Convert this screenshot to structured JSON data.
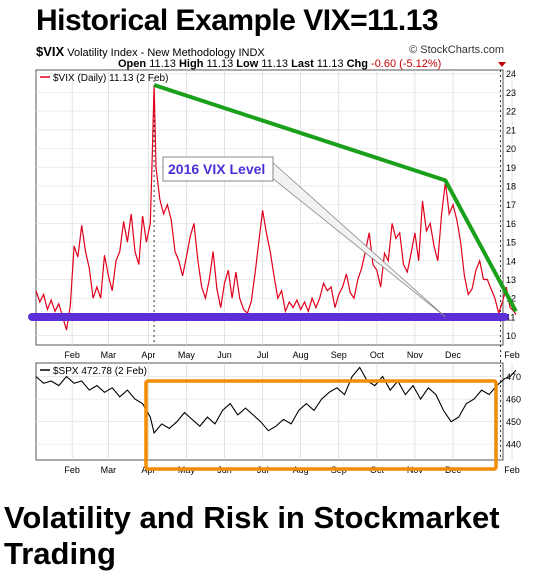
{
  "page_title": "Historical Example  VIX=11.13",
  "header": {
    "symbol": "$VIX",
    "description": "Volatility Index - New Methodology  INDX",
    "source": "© StockCharts.com",
    "open_label": "Open",
    "open": "11.13",
    "high_label": "High",
    "high": "11.13",
    "low_label": "Low",
    "low": "11.13",
    "last_label": "Last",
    "last": "11.13",
    "chg_label": "Chg",
    "chg": "-0.60 (-5.12%)"
  },
  "footer_title": "Volatility and Risk in Stockmarket Trading",
  "colors": {
    "vix_line": "#e0001b",
    "spx_line": "#000000",
    "trend_line": "#1aa01a",
    "level_line": "#5b2ed6",
    "highlight_box": "#f28c00",
    "callout_text": "#4b2fd6"
  },
  "chart_data": [
    {
      "type": "line",
      "legend": "$VIX (Daily) 11.13 (2 Feb)",
      "months": [
        "Feb",
        "Mar",
        "Apr",
        "May",
        "Jun",
        "Jul",
        "Aug",
        "Sep",
        "Oct",
        "Nov",
        "Dec",
        "Feb"
      ],
      "ylim": [
        9.5,
        24.2
      ],
      "yticks": [
        10,
        11,
        12,
        13,
        14,
        15,
        16,
        17,
        18,
        19,
        20,
        21,
        22,
        23,
        24
      ],
      "x_range": [
        0,
        12
      ],
      "series": [
        {
          "values": [
            [
              0,
              12.4
            ],
            [
              0.1,
              11.8
            ],
            [
              0.2,
              12.2
            ],
            [
              0.3,
              11.4
            ],
            [
              0.4,
              11.9
            ],
            [
              0.5,
              11.3
            ],
            [
              0.6,
              11.7
            ],
            [
              0.7,
              11.0
            ],
            [
              0.8,
              10.3
            ],
            [
              0.9,
              11.6
            ],
            [
              1.0,
              14.8
            ],
            [
              1.1,
              14.2
            ],
            [
              1.2,
              15.9
            ],
            [
              1.3,
              14.5
            ],
            [
              1.4,
              13.6
            ],
            [
              1.5,
              12.0
            ],
            [
              1.6,
              12.6
            ],
            [
              1.7,
              12.0
            ],
            [
              1.8,
              14.3
            ],
            [
              1.9,
              13.2
            ],
            [
              2.0,
              12.4
            ],
            [
              2.1,
              14.0
            ],
            [
              2.2,
              14.5
            ],
            [
              2.3,
              16.1
            ],
            [
              2.4,
              15.0
            ],
            [
              2.5,
              16.5
            ],
            [
              2.6,
              14.5
            ],
            [
              2.7,
              13.8
            ],
            [
              2.8,
              16.4
            ],
            [
              2.9,
              15.0
            ],
            [
              3.0,
              16.0
            ],
            [
              3.05,
              19.5
            ],
            [
              3.1,
              23.4
            ],
            [
              3.15,
              19.0
            ],
            [
              3.25,
              17.3
            ],
            [
              3.35,
              16.5
            ],
            [
              3.45,
              17.0
            ],
            [
              3.55,
              16.2
            ],
            [
              3.65,
              14.5
            ],
            [
              3.75,
              14.0
            ],
            [
              3.85,
              13.2
            ],
            [
              3.95,
              14.2
            ],
            [
              4.05,
              15.3
            ],
            [
              4.15,
              16.0
            ],
            [
              4.25,
              14.0
            ],
            [
              4.35,
              12.6
            ],
            [
              4.45,
              12.0
            ],
            [
              4.55,
              13.0
            ],
            [
              4.65,
              14.5
            ],
            [
              4.75,
              12.5
            ],
            [
              4.85,
              11.5
            ],
            [
              4.95,
              12.8
            ],
            [
              5.05,
              13.5
            ],
            [
              5.15,
              12.0
            ],
            [
              5.25,
              13.4
            ],
            [
              5.35,
              12.0
            ],
            [
              5.45,
              11.4
            ],
            [
              5.55,
              11.2
            ],
            [
              5.65,
              11.8
            ],
            [
              5.75,
              13.3
            ],
            [
              5.85,
              15.0
            ],
            [
              5.95,
              16.7
            ],
            [
              6.05,
              15.5
            ],
            [
              6.15,
              14.5
            ],
            [
              6.25,
              13.2
            ],
            [
              6.35,
              12.0
            ],
            [
              6.45,
              12.4
            ],
            [
              6.55,
              11.3
            ],
            [
              6.65,
              11.8
            ],
            [
              6.75,
              11.5
            ],
            [
              6.85,
              11.9
            ],
            [
              6.95,
              11.4
            ],
            [
              7.05,
              11.8
            ],
            [
              7.15,
              11.3
            ],
            [
              7.25,
              12.0
            ],
            [
              7.35,
              11.5
            ],
            [
              7.45,
              12.0
            ],
            [
              7.55,
              12.8
            ],
            [
              7.65,
              12.4
            ],
            [
              7.75,
              12.6
            ],
            [
              7.85,
              11.5
            ],
            [
              7.95,
              12.2
            ],
            [
              8.05,
              12.6
            ],
            [
              8.15,
              13.3
            ],
            [
              8.25,
              12.3
            ],
            [
              8.35,
              12.0
            ],
            [
              8.45,
              13.0
            ],
            [
              8.55,
              13.6
            ],
            [
              8.65,
              14.5
            ],
            [
              8.75,
              15.5
            ],
            [
              8.85,
              13.8
            ],
            [
              8.95,
              13.5
            ],
            [
              9.05,
              12.6
            ],
            [
              9.15,
              14.4
            ],
            [
              9.25,
              14.0
            ],
            [
              9.35,
              16.0
            ],
            [
              9.45,
              15.2
            ],
            [
              9.55,
              15.5
            ],
            [
              9.65,
              13.8
            ],
            [
              9.75,
              13.4
            ],
            [
              9.85,
              14.4
            ],
            [
              9.95,
              15.5
            ],
            [
              10.05,
              14.0
            ],
            [
              10.15,
              17.2
            ],
            [
              10.25,
              15.6
            ],
            [
              10.35,
              16.0
            ],
            [
              10.45,
              14.8
            ],
            [
              10.55,
              14.0
            ],
            [
              10.65,
              16.5
            ],
            [
              10.75,
              18.2
            ],
            [
              10.85,
              16.5
            ],
            [
              10.95,
              17.0
            ],
            [
              11.05,
              16.2
            ],
            [
              11.15,
              15.0
            ],
            [
              11.25,
              13.2
            ],
            [
              11.35,
              12.2
            ],
            [
              11.45,
              12.5
            ],
            [
              11.55,
              13.5
            ],
            [
              11.65,
              14.0
            ],
            [
              11.75,
              13.0
            ],
            [
              11.85,
              13.0
            ],
            [
              11.95,
              12.5
            ],
            [
              12.05,
              12.0
            ],
            [
              12.15,
              11.2
            ],
            [
              12.25,
              11.8
            ],
            [
              12.35,
              12.6
            ],
            [
              12.45,
              11.5
            ],
            [
              12.55,
              11.3
            ],
            [
              12.6,
              11.13
            ]
          ]
        }
      ],
      "annotations": {
        "trend_points": [
          [
            3.1,
            23.4
          ],
          [
            10.75,
            18.3
          ],
          [
            12.6,
            11.3
          ]
        ],
        "level": 11.0,
        "callout_label": "2016 VIX Level",
        "callout_target": [
          10.75,
          11.0
        ]
      }
    },
    {
      "type": "line",
      "legend": "$SPX 472.78 (2 Feb)",
      "months": [
        "Feb",
        "Mar",
        "Apr",
        "May",
        "Jun",
        "Jul",
        "Aug",
        "Sep",
        "Oct",
        "Nov",
        "Dec",
        "Feb"
      ],
      "ylim": [
        433,
        476
      ],
      "yticks": [
        440,
        450,
        460,
        470
      ],
      "x_range": [
        0,
        12
      ],
      "series": [
        {
          "values": [
            [
              0,
              470
            ],
            [
              0.2,
              467
            ],
            [
              0.4,
              468
            ],
            [
              0.6,
              466
            ],
            [
              0.8,
              470
            ],
            [
              1.0,
              467
            ],
            [
              1.2,
              468
            ],
            [
              1.4,
              464
            ],
            [
              1.6,
              466
            ],
            [
              1.8,
              463
            ],
            [
              2.0,
              465
            ],
            [
              2.2,
              461
            ],
            [
              2.4,
              464
            ],
            [
              2.6,
              460
            ],
            [
              2.8,
              458
            ],
            [
              3.0,
              452
            ],
            [
              3.1,
              445
            ],
            [
              3.3,
              449
            ],
            [
              3.5,
              447
            ],
            [
              3.7,
              450
            ],
            [
              3.9,
              454
            ],
            [
              4.1,
              451
            ],
            [
              4.3,
              448
            ],
            [
              4.5,
              452
            ],
            [
              4.7,
              449
            ],
            [
              4.9,
              455
            ],
            [
              5.1,
              458
            ],
            [
              5.3,
              453
            ],
            [
              5.5,
              456
            ],
            [
              5.7,
              453
            ],
            [
              5.9,
              450
            ],
            [
              6.1,
              446
            ],
            [
              6.3,
              448
            ],
            [
              6.5,
              451
            ],
            [
              6.7,
              449
            ],
            [
              6.9,
              455
            ],
            [
              7.1,
              458
            ],
            [
              7.3,
              455
            ],
            [
              7.5,
              460
            ],
            [
              7.7,
              463
            ],
            [
              7.9,
              465
            ],
            [
              8.1,
              462
            ],
            [
              8.3,
              470
            ],
            [
              8.5,
              474
            ],
            [
              8.7,
              468
            ],
            [
              8.9,
              466
            ],
            [
              9.1,
              470
            ],
            [
              9.3,
              464
            ],
            [
              9.5,
              468
            ],
            [
              9.7,
              462
            ],
            [
              9.9,
              466
            ],
            [
              10.1,
              460
            ],
            [
              10.3,
              465
            ],
            [
              10.5,
              462
            ],
            [
              10.7,
              455
            ],
            [
              10.9,
              450
            ],
            [
              11.1,
              452
            ],
            [
              11.3,
              458
            ],
            [
              11.5,
              460
            ],
            [
              11.7,
              464
            ],
            [
              11.9,
              462
            ],
            [
              12.1,
              466
            ],
            [
              12.3,
              469
            ],
            [
              12.45,
              470
            ],
            [
              12.6,
              472.78
            ]
          ]
        }
      ]
    }
  ]
}
